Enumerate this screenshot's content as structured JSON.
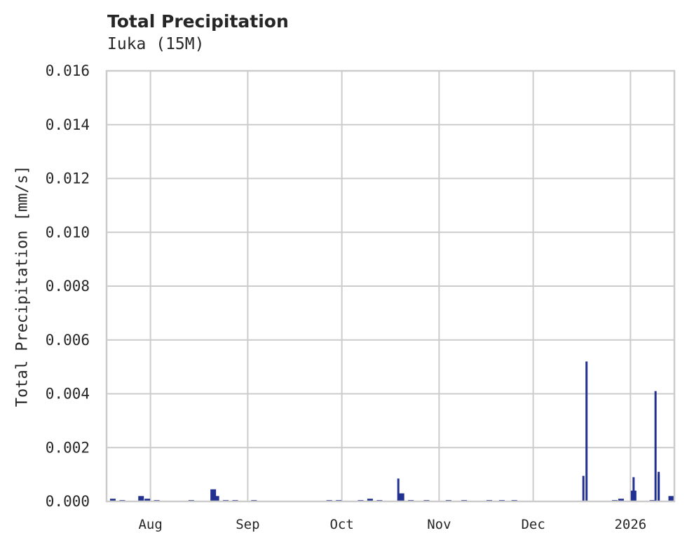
{
  "header": {
    "title": "Total Precipitation",
    "subtitle": "Iuka (15M)"
  },
  "axes": {
    "ylabel": "Total Precipitation [mm/s]",
    "yticks": [
      "0.000",
      "0.002",
      "0.004",
      "0.006",
      "0.008",
      "0.010",
      "0.012",
      "0.014",
      "0.016"
    ],
    "xticks": [
      "Aug",
      "Sep",
      "Oct",
      "Nov",
      "Dec",
      "2026"
    ]
  },
  "colors": {
    "series": "#22318f",
    "grid": "#cccccc",
    "background": "#ffffff"
  },
  "chart_data": {
    "type": "area",
    "title": "Total Precipitation",
    "subtitle": "Iuka (15M)",
    "xlabel": "",
    "ylabel": "Total Precipitation [mm/s]",
    "ylim": [
      0.0,
      0.016
    ],
    "xlim": [
      "2025-07-18",
      "2026-01-15"
    ],
    "grid": true,
    "legend": null,
    "x_tick_labels": [
      "Aug",
      "Sep",
      "Oct",
      "Nov",
      "Dec",
      "2026"
    ],
    "y_tick_labels": [
      "0.000",
      "0.002",
      "0.004",
      "0.006",
      "0.008",
      "0.010",
      "0.012",
      "0.014",
      "0.016"
    ],
    "series": [
      {
        "name": "Total Precipitation",
        "points": [
          {
            "x": "2025-07-20",
            "y": 0.0001
          },
          {
            "x": "2025-07-23",
            "y": 5e-05
          },
          {
            "x": "2025-07-29",
            "y": 0.0002
          },
          {
            "x": "2025-07-31",
            "y": 0.0001
          },
          {
            "x": "2025-08-03",
            "y": 5e-05
          },
          {
            "x": "2025-08-14",
            "y": 5e-05
          },
          {
            "x": "2025-08-21",
            "y": 0.00045
          },
          {
            "x": "2025-08-22",
            "y": 0.0002
          },
          {
            "x": "2025-08-25",
            "y": 5e-05
          },
          {
            "x": "2025-08-28",
            "y": 5e-05
          },
          {
            "x": "2025-09-03",
            "y": 5e-05
          },
          {
            "x": "2025-09-27",
            "y": 5e-05
          },
          {
            "x": "2025-09-30",
            "y": 5e-05
          },
          {
            "x": "2025-10-07",
            "y": 5e-05
          },
          {
            "x": "2025-10-10",
            "y": 0.0001
          },
          {
            "x": "2025-10-13",
            "y": 5e-05
          },
          {
            "x": "2025-10-19",
            "y": 0.00085
          },
          {
            "x": "2025-10-20",
            "y": 0.0003
          },
          {
            "x": "2025-10-23",
            "y": 5e-05
          },
          {
            "x": "2025-10-28",
            "y": 5e-05
          },
          {
            "x": "2025-11-04",
            "y": 5e-05
          },
          {
            "x": "2025-11-09",
            "y": 5e-05
          },
          {
            "x": "2025-11-17",
            "y": 5e-05
          },
          {
            "x": "2025-11-21",
            "y": 5e-05
          },
          {
            "x": "2025-11-25",
            "y": 5e-05
          },
          {
            "x": "2025-12-17",
            "y": 0.00095
          },
          {
            "x": "2025-12-18",
            "y": 0.0052
          },
          {
            "x": "2025-12-27",
            "y": 5e-05
          },
          {
            "x": "2025-12-29",
            "y": 0.0001
          },
          {
            "x": "2026-01-02",
            "y": 0.0009
          },
          {
            "x": "2026-01-02",
            "y": 0.0004
          },
          {
            "x": "2026-01-08",
            "y": 5e-05
          },
          {
            "x": "2026-01-09",
            "y": 0.0041
          },
          {
            "x": "2026-01-10",
            "y": 0.0011
          },
          {
            "x": "2026-01-10",
            "y": 0.001
          },
          {
            "x": "2026-01-14",
            "y": 0.0002
          }
        ]
      }
    ]
  }
}
